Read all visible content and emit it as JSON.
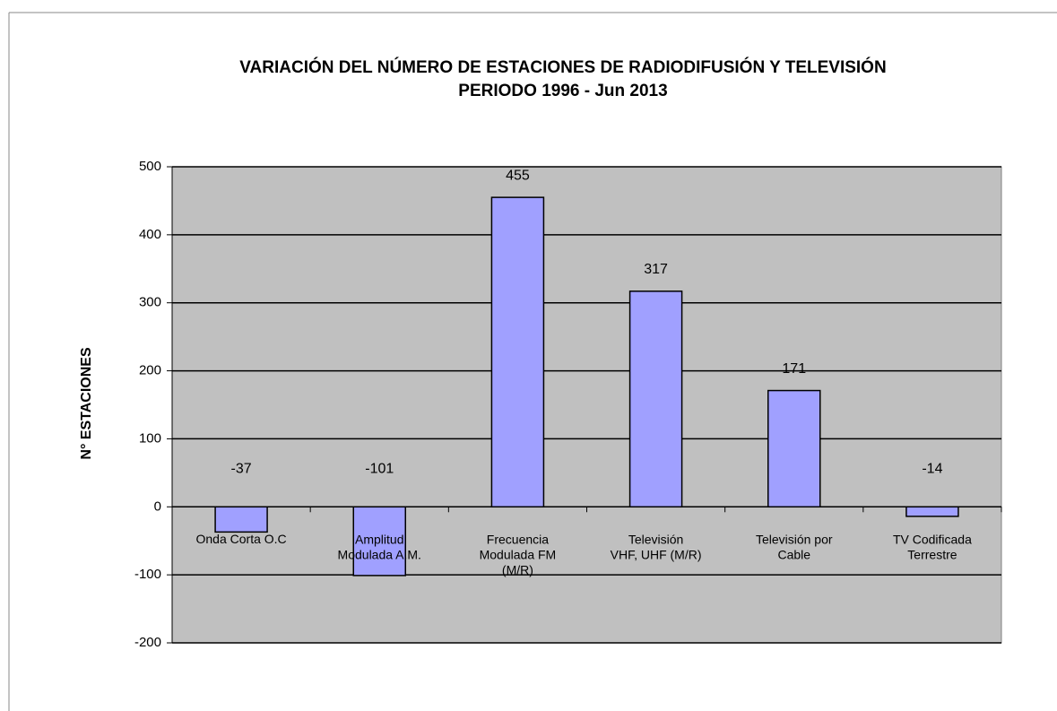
{
  "chart_data": {
    "type": "bar",
    "title": "VARIACIÓN DEL NÚMERO DE ESTACIONES DE RADIODIFUSIÓN Y TELEVISIÓN",
    "subtitle": "PERIODO  1996 - Jun 2013",
    "y_label": "N° ESTACIONES",
    "categories": [
      "Onda Corta O.C",
      "Amplitud\nModulada A.M.",
      "Frecuencia\nModulada FM\n(M/R)",
      "Televisión\nVHF, UHF (M/R)",
      "Televisión por\nCable",
      "TV Codificada\nTerrestre"
    ],
    "values": [
      -37,
      -101,
      455,
      317,
      171,
      -14
    ],
    "color": "#a0a0ff",
    "ylim": [
      -200,
      500
    ],
    "yticks": [
      -200,
      -100,
      0,
      100,
      200,
      300,
      400,
      500
    ],
    "grid": true
  }
}
